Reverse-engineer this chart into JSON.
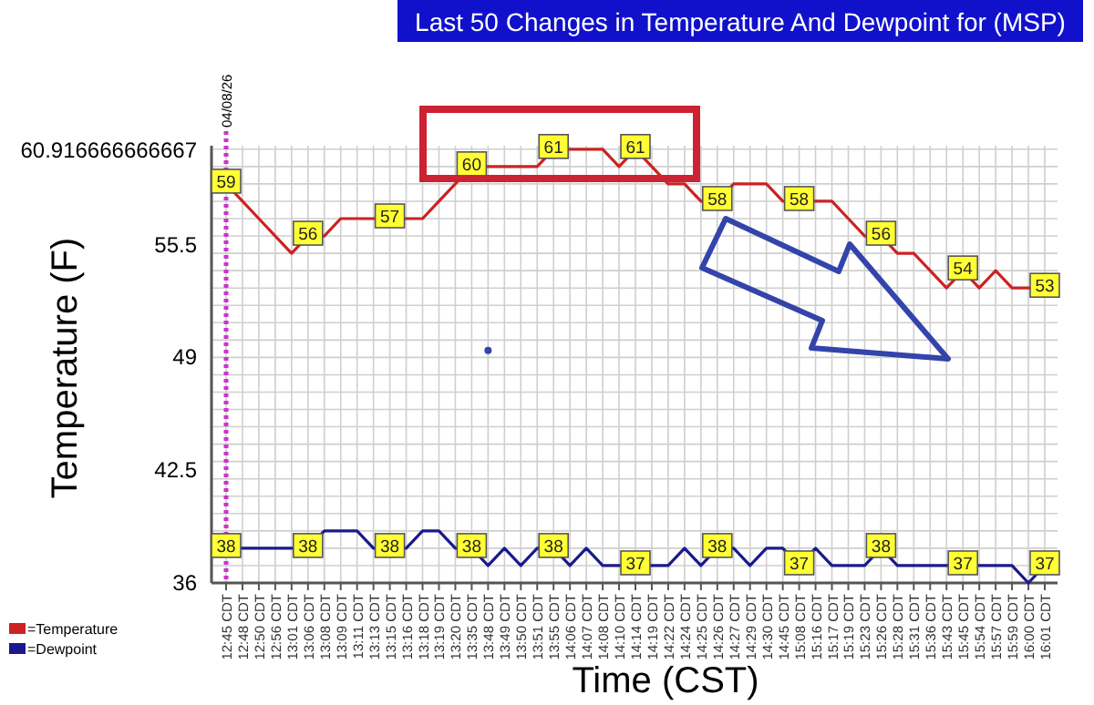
{
  "chart_data": {
    "type": "line",
    "title": "Last 50 Changes in Temperature And Dewpoint for (MSP)",
    "xlabel": "Time (CST)",
    "ylabel": "Temperature (F)",
    "categories": [
      "12:45 CDT",
      "12:48 CDT",
      "12:50 CDT",
      "12:56 CDT",
      "13:01 CDT",
      "13:06 CDT",
      "13:08 CDT",
      "13:09 CDT",
      "13:11 CDT",
      "13:13 CDT",
      "13:15 CDT",
      "13:16 CDT",
      "13:18 CDT",
      "13:19 CDT",
      "13:20 CDT",
      "13:35 CDT",
      "13:48 CDT",
      "13:49 CDT",
      "13:50 CDT",
      "13:51 CDT",
      "13:55 CDT",
      "14:06 CDT",
      "14:07 CDT",
      "14:08 CDT",
      "14:10 CDT",
      "14:14 CDT",
      "14:19 CDT",
      "14:22 CDT",
      "14:24 CDT",
      "14:25 CDT",
      "14:26 CDT",
      "14:27 CDT",
      "14:29 CDT",
      "14:30 CDT",
      "14:45 CDT",
      "15:08 CDT",
      "15:16 CDT",
      "15:17 CDT",
      "15:19 CDT",
      "15:23 CDT",
      "15:26 CDT",
      "15:28 CDT",
      "15:31 CDT",
      "15:36 CDT",
      "15:43 CDT",
      "15:45 CDT",
      "15:54 CDT",
      "15:57 CDT",
      "15:59 CDT",
      "16:00 CDT",
      "16:01 CDT"
    ],
    "series": [
      {
        "name": "=Temperature",
        "color": "#cc2222",
        "values": [
          59,
          58,
          57,
          56,
          55,
          56,
          56,
          57,
          57,
          57,
          57,
          57,
          57,
          58,
          59,
          60,
          60,
          60,
          60,
          60,
          61,
          61,
          61,
          61,
          60,
          61,
          60,
          59,
          59,
          58,
          58,
          59,
          59,
          59,
          58,
          58,
          58,
          58,
          57,
          56,
          56,
          55,
          55,
          54,
          53,
          54,
          53,
          54,
          53,
          53,
          53
        ],
        "value_labels": [
          "59",
          null,
          null,
          null,
          null,
          "56",
          null,
          null,
          null,
          null,
          "57",
          null,
          null,
          null,
          null,
          "60",
          null,
          null,
          null,
          null,
          "61",
          null,
          null,
          null,
          null,
          "61",
          null,
          null,
          null,
          null,
          "58",
          null,
          null,
          null,
          null,
          "58",
          null,
          null,
          null,
          null,
          "56",
          null,
          null,
          null,
          null,
          "54",
          null,
          null,
          null,
          null,
          "53"
        ]
      },
      {
        "name": "=Dewpoint",
        "color": "#1a1a8c",
        "values": [
          38,
          38,
          38,
          38,
          38,
          38,
          39,
          39,
          39,
          38,
          38,
          38,
          39,
          39,
          38,
          38,
          37,
          38,
          37,
          38,
          38,
          37,
          38,
          37,
          37,
          37,
          37,
          37,
          38,
          37,
          38,
          38,
          37,
          38,
          38,
          37,
          38,
          37,
          37,
          37,
          38,
          37,
          37,
          37,
          37,
          37,
          37,
          37,
          37,
          36,
          37
        ],
        "value_labels": [
          "38",
          null,
          null,
          null,
          null,
          "38",
          null,
          null,
          null,
          null,
          "38",
          null,
          null,
          null,
          null,
          "38",
          null,
          null,
          null,
          null,
          "38",
          null,
          null,
          null,
          null,
          "37",
          null,
          null,
          null,
          null,
          "38",
          null,
          null,
          null,
          null,
          "37",
          null,
          null,
          null,
          null,
          "38",
          null,
          null,
          null,
          null,
          "37",
          null,
          null,
          null,
          null,
          "37"
        ]
      },
      {
        "type": "scatter",
        "color": "#3344aa",
        "x": [
          "13:48 CDT"
        ],
        "values": [
          49.4
        ]
      }
    ],
    "ylim": [
      36,
      61.2
    ],
    "yticks": [
      36,
      42.5,
      49,
      55.5,
      60.916666666667
    ],
    "grid": true,
    "legend": "bottom left",
    "ref_lines": [
      {
        "axis": "x",
        "value": "12:45 CDT",
        "label": "04/08/26",
        "color": "#cc33cc",
        "line_style": "dotted"
      }
    ]
  }
}
